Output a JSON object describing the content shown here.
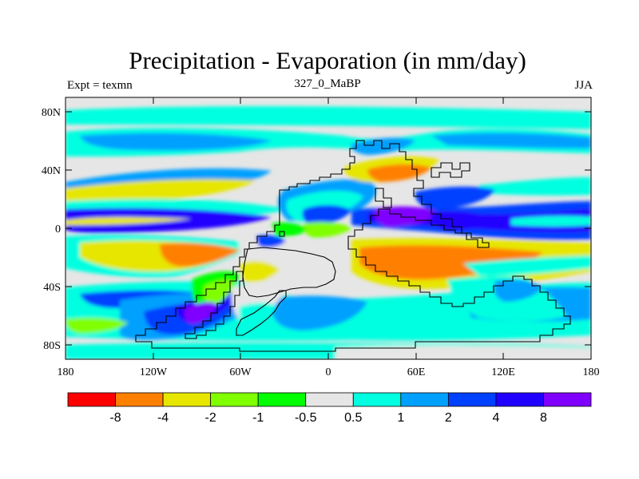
{
  "header": {
    "title": "Precipitation - Evaporation (in mm/day)",
    "experiment": "Expt = texmn",
    "center_label": "327_0_MaBP",
    "season": "JJA"
  },
  "axes": {
    "lat_labels": [
      "80N",
      "40N",
      "0",
      "40S",
      "80S"
    ],
    "lon_labels": [
      "180",
      "120W",
      "60W",
      "0",
      "60E",
      "120E",
      "180"
    ]
  },
  "colorbar": {
    "colors": [
      "#ff0000",
      "#ff8000",
      "#e6e600",
      "#80ff00",
      "#00ff00",
      "#e6e6e6",
      "#00ffe0",
      "#00a0ff",
      "#0040ff",
      "#2000ff",
      "#8000ff"
    ],
    "labels": [
      "-8",
      "-4",
      "-2",
      "-1",
      "-0.5",
      "0.5",
      "1",
      "2",
      "4",
      "8"
    ]
  },
  "palette": {
    "neutral": "#e6e6e6",
    "cyan": "#00ffe0",
    "light_blue": "#00a0ff",
    "blue": "#0040ff",
    "dark_blue": "#2000ff",
    "violet": "#8000ff",
    "yellow": "#e6e600",
    "lime": "#80ff00",
    "green": "#00ff00",
    "orange": "#ff8000",
    "red": "#ff0000"
  }
}
